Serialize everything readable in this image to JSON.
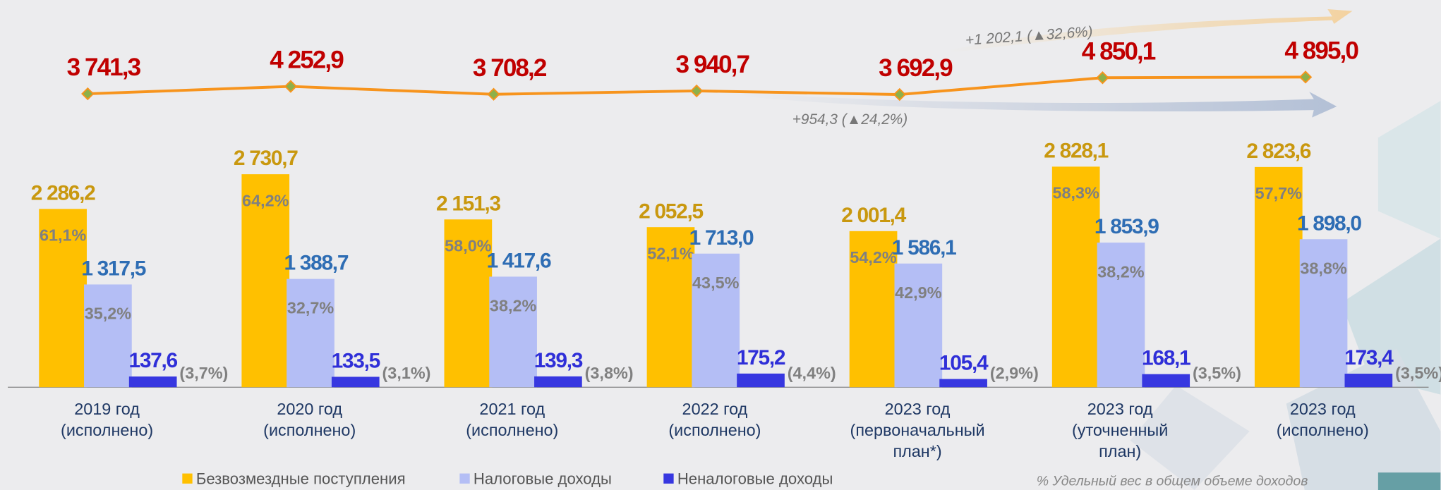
{
  "chart_data": {
    "type": "bar",
    "categories": [
      [
        "2019 год",
        "(исполнено)"
      ],
      [
        "2020 год",
        "(исполнено)"
      ],
      [
        "2021 год",
        "(исполнено)"
      ],
      [
        "2022 год",
        "(исполнено)"
      ],
      [
        "2023 год",
        "(первоначальный",
        "план*)"
      ],
      [
        "2023 год",
        "(уточненный",
        "план)"
      ],
      [
        "2023 год",
        "(исполнено)"
      ]
    ],
    "series": [
      {
        "name": "Безвозмездные поступления",
        "color": "#FFC000",
        "label_color": "#C9980F",
        "values": [
          2286.2,
          2730.7,
          2151.3,
          2052.5,
          2001.4,
          2828.1,
          2823.6
        ],
        "value_labels": [
          "2 286,2",
          "2 730,7",
          "2 151,3",
          "2 052,5",
          "2 001,4",
          "2 828,1",
          "2 823,6"
        ],
        "shares": [
          61.1,
          64.2,
          58.0,
          52.1,
          54.2,
          58.3,
          57.7
        ],
        "share_labels": [
          "61,1%",
          "64,2%",
          "58,0%",
          "52,1%",
          "54,2%",
          "58,3%",
          "57,7%"
        ]
      },
      {
        "name": "Налоговые доходы",
        "color": "#B4BEF5",
        "label_color": "#2E6DB4",
        "values": [
          1317.5,
          1388.7,
          1417.6,
          1713.0,
          1586.1,
          1853.9,
          1898.0
        ],
        "value_labels": [
          "1 317,5",
          "1 388,7",
          "1 417,6",
          "1 713,0",
          "1 586,1",
          "1 853,9",
          "1 898,0"
        ],
        "shares": [
          35.2,
          32.7,
          38.2,
          43.5,
          42.9,
          38.2,
          38.8
        ],
        "share_labels": [
          "35,2%",
          "32,7%",
          "38,2%",
          "43,5%",
          "42,9%",
          "38,2%",
          "38,8%"
        ]
      },
      {
        "name": "Неналоговые доходы",
        "color": "#3737E0",
        "label_color": "#2F2FD8",
        "values": [
          137.6,
          133.5,
          139.3,
          175.2,
          105.4,
          168.1,
          173.4
        ],
        "value_labels": [
          "137,6",
          "133,5",
          "139,3",
          "175,2",
          "105,4",
          "168,1",
          "173,4"
        ],
        "shares": [
          3.7,
          3.1,
          3.8,
          4.4,
          2.9,
          3.5,
          3.5
        ],
        "share_labels": [
          "(3,7%)",
          "(3,1%)",
          "(3,8%)",
          "(4,4%)",
          "(2,9%)",
          "(3,5%)",
          "(3,5%)"
        ]
      }
    ],
    "total": {
      "type": "line",
      "color": "#F7941D",
      "label_color": "#C00000",
      "values": [
        3741.3,
        4252.9,
        3708.2,
        3940.7,
        3692.9,
        4850.1,
        4895.0
      ],
      "value_labels": [
        "3 741,3",
        "4 252,9",
        "3 708,2",
        "3 940,7",
        "3 692,9",
        "4 850,1",
        "4 895,0"
      ]
    },
    "annotations": [
      "+1 202,1 (▲32,6%)",
      "+954,3 (▲24,2%)"
    ],
    "note": "% Удельный вес в общем объеме доходов"
  }
}
